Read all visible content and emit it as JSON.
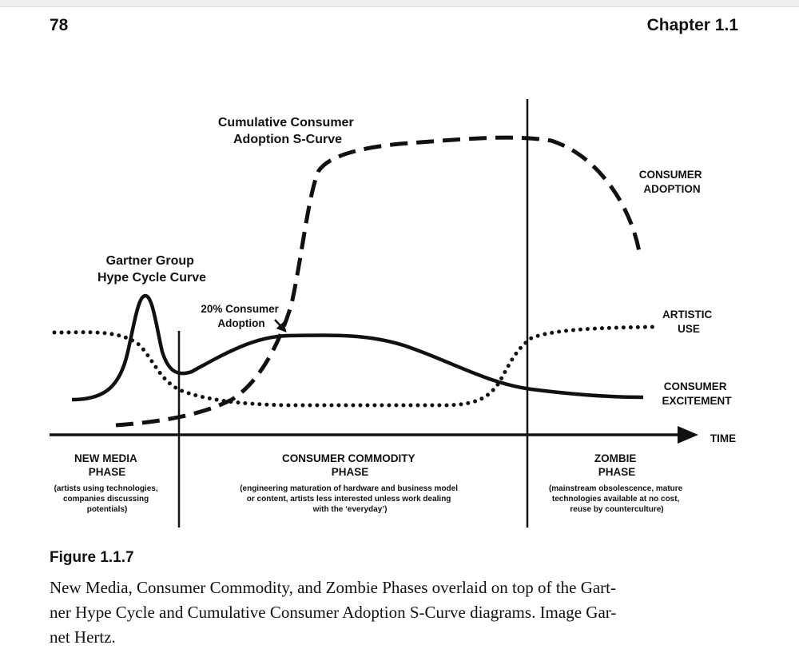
{
  "header": {
    "page_number": "78",
    "chapter": "Chapter 1.1"
  },
  "diagram": {
    "curve_labels": {
      "scurve": [
        "Cumulative Consumer",
        "Adoption S-Curve"
      ],
      "hype": [
        "Gartner Group",
        "Hype Cycle Curve"
      ],
      "twenty": [
        "20% Consumer",
        "Adoption"
      ],
      "consumer_adoption": [
        "CONSUMER",
        "ADOPTION"
      ],
      "artistic_use": [
        "ARTISTIC",
        "USE"
      ],
      "consumer_excitement": [
        "CONSUMER",
        "EXCITEMENT"
      ],
      "time": "TIME"
    },
    "phases": [
      {
        "title": [
          "NEW MEDIA",
          "PHASE"
        ],
        "desc": [
          "(artists using technologies,",
          "companies discussing",
          "potentials)"
        ]
      },
      {
        "title": [
          "CONSUMER COMMODITY",
          "PHASE"
        ],
        "desc": [
          "(engineering maturation of hardware and business model",
          "or content, artists less interested unless work dealing",
          "with the ‘everyday’)"
        ]
      },
      {
        "title": [
          "ZOMBIE",
          "PHASE"
        ],
        "desc": [
          "(mainstream obsolescence, mature",
          "technologies available at no cost,",
          "reuse by counterculture)"
        ]
      }
    ]
  },
  "figure": {
    "label": "Figure 1.1.7",
    "caption_lines": [
      "New Media, Consumer Commodity, and Zombie Phases overlaid on top of the Gart-",
      "ner Hype Cycle and Cumulative Consumer Adoption S-Curve diagrams. Image Gar-",
      "net Hertz."
    ]
  },
  "colors": {
    "ink": "#111111",
    "background": "#ffffff"
  }
}
